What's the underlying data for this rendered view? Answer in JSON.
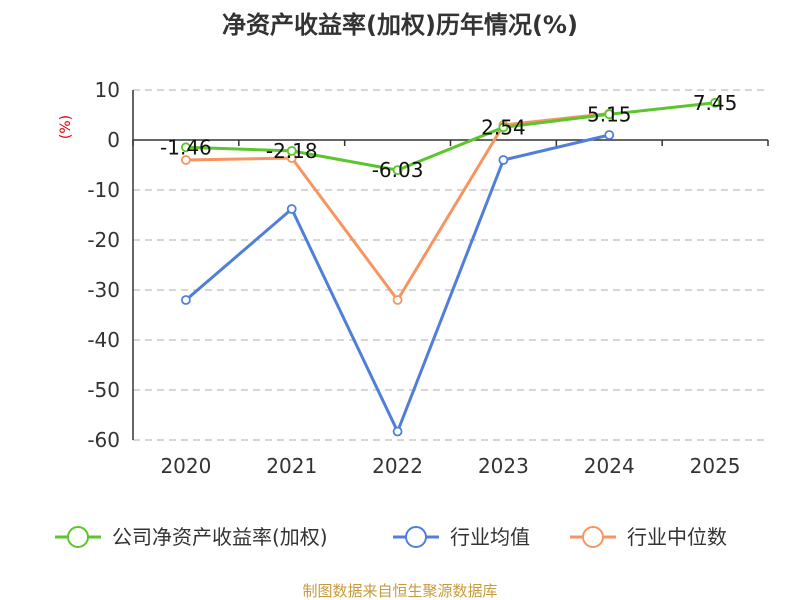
{
  "title": "净资产收益率(加权)历年情况(%)",
  "source": "制图数据来自恒生聚源数据库",
  "colors": {
    "company": "#5bc62b",
    "industry_avg": "#4f7fd9",
    "industry_median": "#f79560",
    "grid": "#c8c8c8",
    "axis": "#333333"
  },
  "chart_data": {
    "type": "line",
    "title": "净资产收益率(加权)历年情况(%)",
    "y_unit": "(%)",
    "x": [
      "2020",
      "2021",
      "2022",
      "2023",
      "2024",
      "2025"
    ],
    "ylim": [
      -60,
      10
    ],
    "yticks": [
      10,
      0,
      -10,
      -20,
      -30,
      -40,
      -50,
      -60
    ],
    "grid": true,
    "legend": "bottom",
    "series": [
      {
        "name": "公司净资产收益率(加权)",
        "key": "company",
        "values": [
          -1.46,
          -2.18,
          -6.03,
          2.54,
          5.15,
          7.45
        ],
        "labels": [
          "-1.46",
          "-2.18",
          "-6.03",
          "2.54",
          "5.15",
          "7.45"
        ]
      },
      {
        "name": "行业均值",
        "key": "industry_avg",
        "values": [
          -32.0,
          -13.8,
          -58.3,
          -4.0,
          1.0,
          null
        ]
      },
      {
        "name": "行业中位数",
        "key": "industry_median",
        "values": [
          -4.0,
          -3.6,
          -32.0,
          3.0,
          5.3,
          null
        ]
      }
    ]
  }
}
